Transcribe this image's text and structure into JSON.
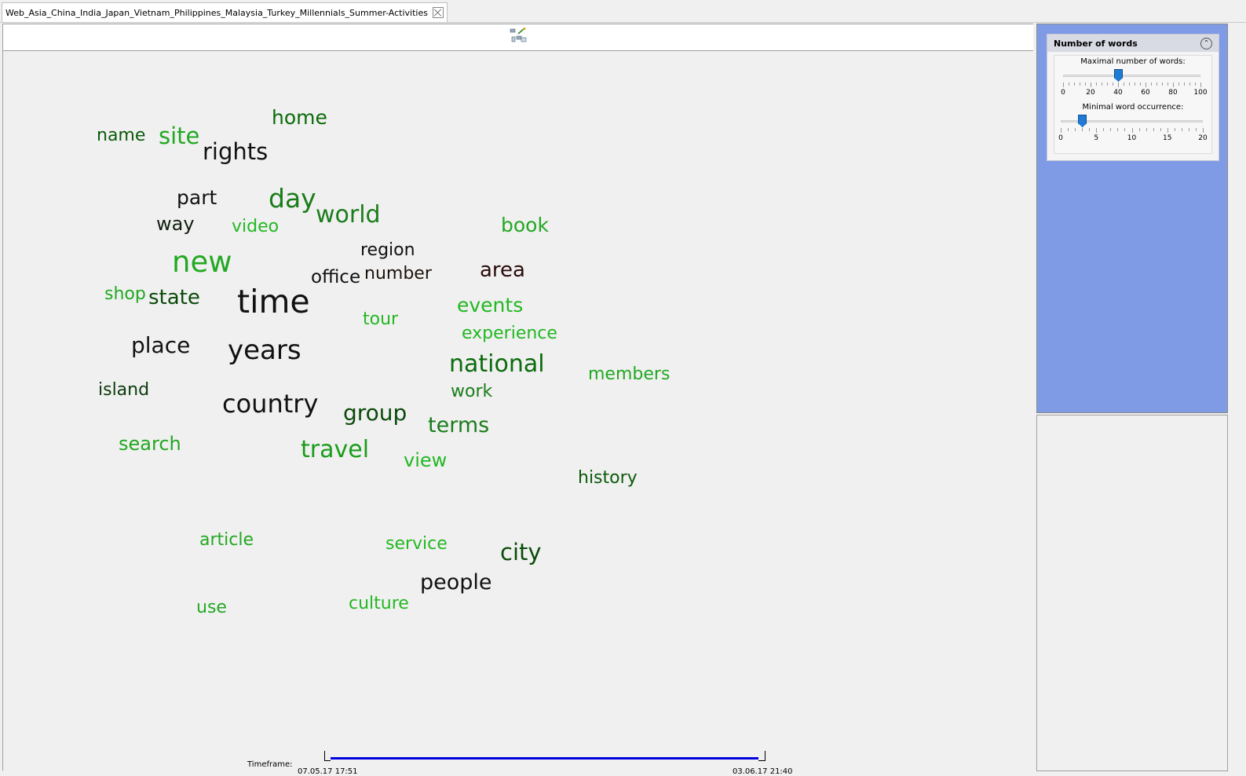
{
  "tab": {
    "title": "Web_Asia_China_India_Japan_Vietnam_Philippines_Malaysia_Turkey_Millennials_Summer-Activities"
  },
  "toolbar": {
    "icon": "layout-wand-icon"
  },
  "colors": {
    "dark_text": "#111111",
    "dark_green": "#0b6b0b",
    "green": "#1a9c1a",
    "light_green": "#22b822",
    "timeline": "#0000e0",
    "side_panel": "#7f9be6"
  },
  "wordcloud": [
    {
      "text": "home",
      "color": "#0b6b0b"
    },
    {
      "text": "name",
      "color": "#0b5a0b"
    },
    {
      "text": "site",
      "color": "#22a822"
    },
    {
      "text": "rights",
      "color": "#111111"
    },
    {
      "text": "part",
      "color": "#111111"
    },
    {
      "text": "day",
      "color": "#1a7d1a"
    },
    {
      "text": "way",
      "color": "#102010"
    },
    {
      "text": "video",
      "color": "#22b822"
    },
    {
      "text": "world",
      "color": "#1a7d1a"
    },
    {
      "text": "book",
      "color": "#22a822"
    },
    {
      "text": "region",
      "color": "#111111"
    },
    {
      "text": "new",
      "color": "#22a822"
    },
    {
      "text": "office",
      "color": "#111111"
    },
    {
      "text": "number",
      "color": "#1c140c"
    },
    {
      "text": "area",
      "color": "#2a0a0a"
    },
    {
      "text": "shop",
      "color": "#22a822"
    },
    {
      "text": "state",
      "color": "#0b4a0b"
    },
    {
      "text": "time",
      "color": "#111111"
    },
    {
      "text": "events",
      "color": "#22b822"
    },
    {
      "text": "tour",
      "color": "#22b822"
    },
    {
      "text": "experience",
      "color": "#22b822"
    },
    {
      "text": "place",
      "color": "#111111"
    },
    {
      "text": "years",
      "color": "#111111"
    },
    {
      "text": "national",
      "color": "#0b6b0b"
    },
    {
      "text": "members",
      "color": "#22a822"
    },
    {
      "text": "island",
      "color": "#0b3a0b"
    },
    {
      "text": "work",
      "color": "#1a7d1a"
    },
    {
      "text": "country",
      "color": "#111111"
    },
    {
      "text": "group",
      "color": "#0b4a0b"
    },
    {
      "text": "terms",
      "color": "#1a7d1a"
    },
    {
      "text": "search",
      "color": "#22a822"
    },
    {
      "text": "travel",
      "color": "#1a9c1a"
    },
    {
      "text": "view",
      "color": "#22b822"
    },
    {
      "text": "history",
      "color": "#0b5a0b"
    },
    {
      "text": "article",
      "color": "#22a822"
    },
    {
      "text": "service",
      "color": "#22b822"
    },
    {
      "text": "city",
      "color": "#0b4a0b"
    },
    {
      "text": "people",
      "color": "#111111"
    },
    {
      "text": "culture",
      "color": "#22b822"
    },
    {
      "text": "use",
      "color": "#22a822"
    }
  ],
  "timeframe": {
    "label": "Timeframe:",
    "start": "07.05.17 17:51",
    "end": "03.06.17 21:40"
  },
  "panel": {
    "title": "Number of words",
    "max_words": {
      "label": "Maximal number of words:",
      "value": 40,
      "min": 0,
      "max": 100,
      "ticks": [
        "0",
        "20",
        "40",
        "60",
        "80",
        "100"
      ]
    },
    "min_occurrence": {
      "label": "Minimal word occurrence:",
      "value": 3,
      "min": 0,
      "max": 20,
      "ticks": [
        "0",
        "5",
        "10",
        "15",
        "20"
      ]
    }
  }
}
